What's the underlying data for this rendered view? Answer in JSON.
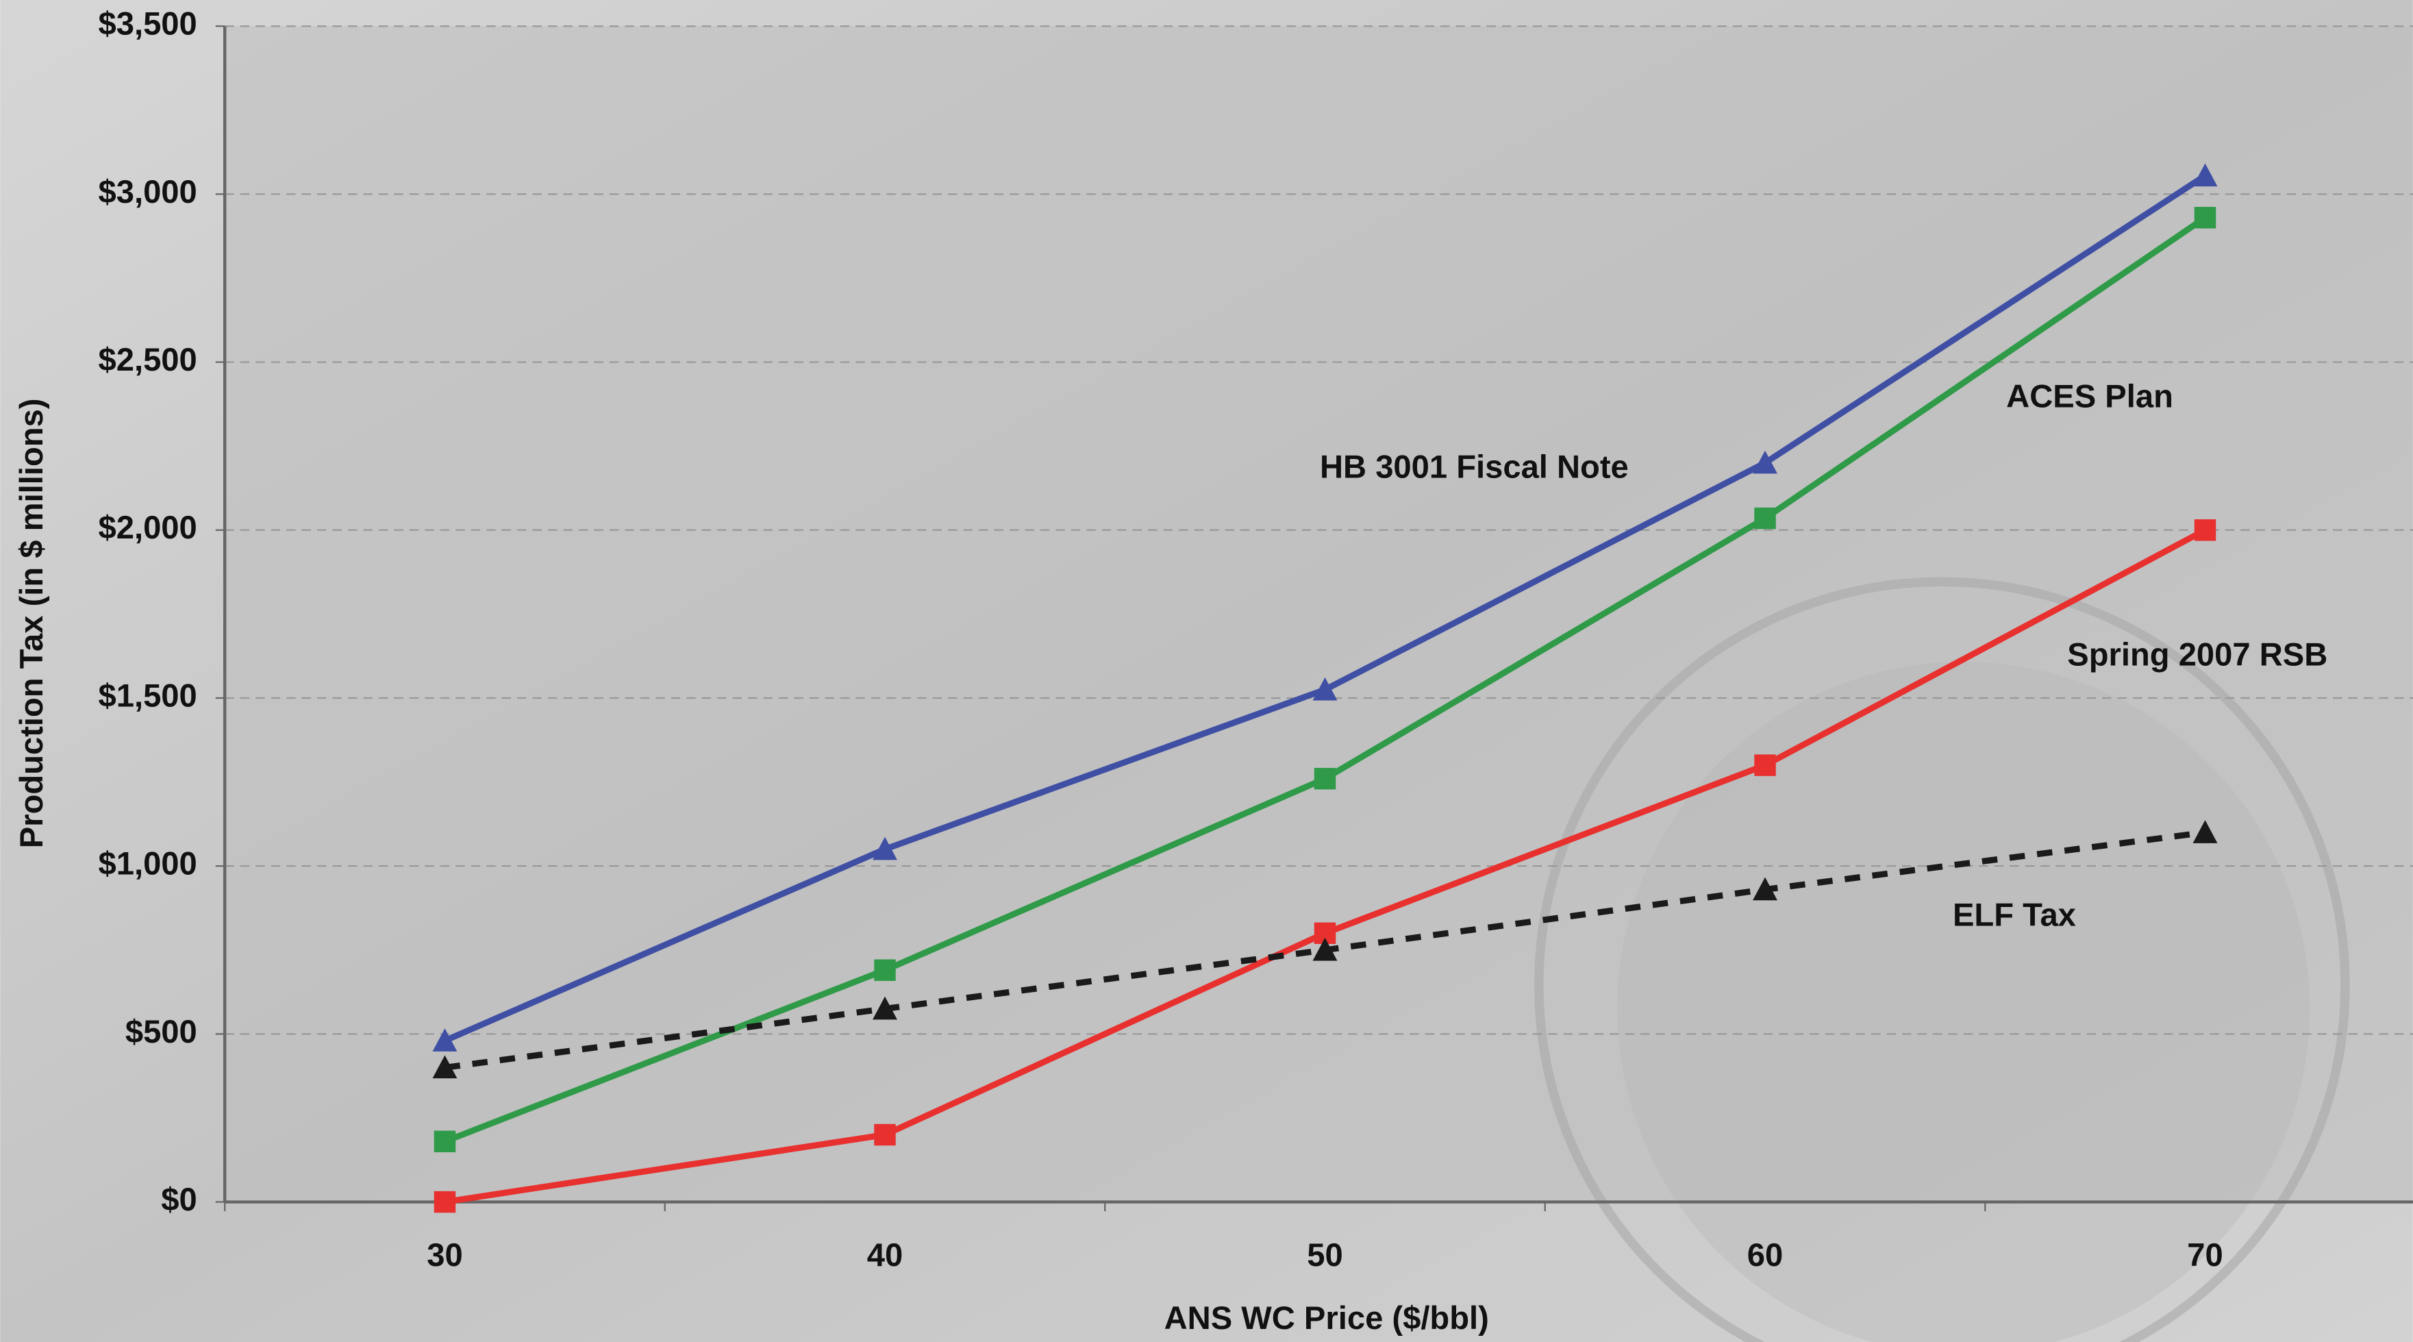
{
  "chart_data": {
    "type": "line",
    "x_label": "ANS WC Price ($/bbl)",
    "y_label": "Production Tax (in $ millions)",
    "categories": [
      "30",
      "40",
      "50",
      "60",
      "70"
    ],
    "ylim": [
      0,
      3500
    ],
    "yticks": [
      {
        "value": 0,
        "label": "$0"
      },
      {
        "value": 500,
        "label": "$500"
      },
      {
        "value": 1000,
        "label": "$1,000"
      },
      {
        "value": 1500,
        "label": "$1,500"
      },
      {
        "value": 2000,
        "label": "$2,000"
      },
      {
        "value": 2500,
        "label": "$2,500"
      },
      {
        "value": 3000,
        "label": "$3,000"
      },
      {
        "value": 3500,
        "label": "$3,500"
      }
    ],
    "grid": true,
    "series": [
      {
        "name": "HB 3001 Fiscal Note",
        "color": "#3f4fa3",
        "marker": "triangle",
        "dashed": false,
        "values": [
          480,
          1050,
          1525,
          2200,
          3055
        ]
      },
      {
        "name": "ACES Plan",
        "color": "#2f9a48",
        "marker": "square",
        "dashed": false,
        "values": [
          180,
          690,
          1260,
          2035,
          2930
        ]
      },
      {
        "name": "Spring 2007 RSB",
        "color": "#e8302e",
        "marker": "square",
        "dashed": false,
        "values": [
          0,
          200,
          800,
          1300,
          2000
        ]
      },
      {
        "name": "ELF Tax",
        "color": "#1a1a1a",
        "marker": "triangle",
        "dashed": true,
        "values": [
          400,
          575,
          750,
          930,
          1100
        ]
      }
    ]
  }
}
